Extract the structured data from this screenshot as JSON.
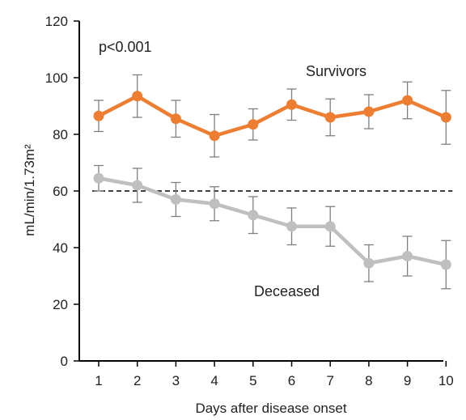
{
  "chart_data": {
    "type": "line",
    "xlabel": "Days after disease onset",
    "ylabel": "mL/min/1.73m²",
    "x": [
      1,
      2,
      3,
      4,
      5,
      6,
      7,
      8,
      9,
      10
    ],
    "xticks": [
      "1",
      "2",
      "3",
      "4",
      "5",
      "6",
      "7",
      "8",
      "9",
      "10"
    ],
    "ylim": [
      0,
      120
    ],
    "yticks": [
      "0",
      "20",
      "40",
      "60",
      "80",
      "100",
      "120"
    ],
    "grid": false,
    "series": [
      {
        "name": "Survivors",
        "color": "#ED7D31",
        "values": [
          86.5,
          93.5,
          85.5,
          79.5,
          83.5,
          90.5,
          86,
          88,
          92,
          86
        ],
        "error": [
          5.5,
          7.5,
          6.5,
          7.5,
          5.5,
          5.5,
          6.5,
          6,
          6.5,
          9.5
        ]
      },
      {
        "name": "Deceased",
        "color": "#BFBFBF",
        "values": [
          64.5,
          62,
          57,
          55.5,
          51.5,
          47.5,
          47.5,
          34.5,
          37,
          34
        ],
        "error": [
          4.5,
          6,
          6,
          6,
          6.5,
          6.5,
          7,
          6.5,
          7,
          8.5
        ]
      }
    ],
    "reference_line": {
      "y": 60,
      "style": "dashed",
      "color": "#000000"
    },
    "annotations": [
      {
        "text": "p<0.001"
      },
      {
        "text": "Survivors"
      },
      {
        "text": "Deceased"
      }
    ]
  }
}
